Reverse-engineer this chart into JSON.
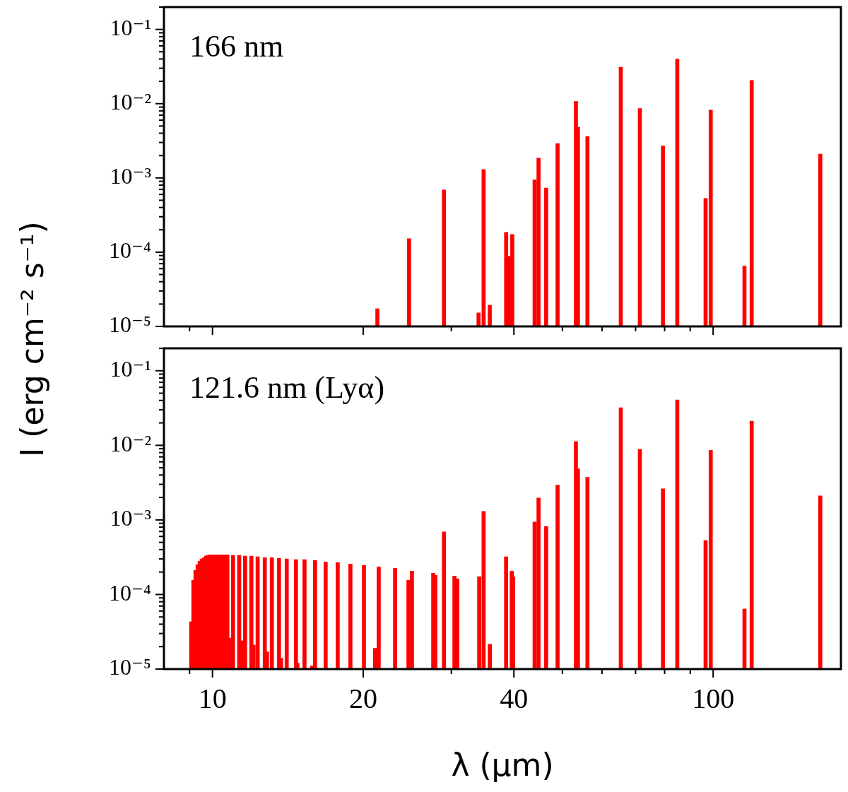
{
  "chart_data": [
    {
      "type": "bar",
      "ylabel": "I (erg cm⁻² s⁻¹)",
      "annotations": [
        "166 nm"
      ],
      "color": "#ff0000",
      "log": "xy",
      "tick_labels": "y",
      "x": [
        21.35,
        24.7,
        29.0,
        34.0,
        34.8,
        35.8,
        38.6,
        39.2,
        39.7,
        44.0,
        44.8,
        46.4,
        48.9,
        53.2,
        53.7,
        56.1,
        65.4,
        71.4,
        79.4,
        84.8,
        96.6,
        98.9,
        115.5,
        119.4,
        163.7
      ],
      "values": [
        1.73e-05,
        0.000152,
        0.00069,
        1.52e-05,
        0.0013,
        1.93e-05,
        0.000185,
        8.8e-05,
        0.000173,
        0.00094,
        0.00185,
        0.00073,
        0.0029,
        0.0107,
        0.00485,
        0.0036,
        0.031,
        0.0086,
        0.0027,
        0.04,
        0.00053,
        0.0082,
        6.5e-05,
        0.0206,
        0.0021
      ],
      "xlim": [
        8,
        180
      ],
      "xticks": [
        {
          "value": 9,
          "label": null
        },
        10,
        20,
        {
          "value": 30,
          "label": null
        },
        40,
        {
          "value": 50,
          "label": null
        },
        {
          "value": 60,
          "label": null
        },
        {
          "value": 70,
          "label": null
        },
        {
          "value": 80,
          "label": null
        },
        {
          "value": 90,
          "label": null
        },
        100
      ],
      "ylim": [
        1e-05,
        0.2
      ],
      "yticks": [
        {
          "value": 1e-05,
          "label": "10⁻⁵"
        },
        {
          "value": 2e-05,
          "label": null
        },
        {
          "value": 3e-05,
          "label": null
        },
        {
          "value": 4e-05,
          "label": null
        },
        {
          "value": 5e-05,
          "label": null
        },
        {
          "value": 6e-05,
          "label": null
        },
        {
          "value": 7e-05,
          "label": null
        },
        {
          "value": 8e-05,
          "label": null
        },
        {
          "value": 9e-05,
          "label": null
        },
        {
          "value": 0.0001,
          "label": "10⁻⁴"
        },
        {
          "value": 0.0002,
          "label": null
        },
        {
          "value": 0.0003,
          "label": null
        },
        {
          "value": 0.0004,
          "label": null
        },
        {
          "value": 0.0005,
          "label": null
        },
        {
          "value": 0.0006,
          "label": null
        },
        {
          "value": 0.0007,
          "label": null
        },
        {
          "value": 0.0008,
          "label": null
        },
        {
          "value": 0.0009,
          "label": null
        },
        {
          "value": 0.001,
          "label": "10⁻³"
        },
        {
          "value": 0.002,
          "label": null
        },
        {
          "value": 0.003,
          "label": null
        },
        {
          "value": 0.004,
          "label": null
        },
        {
          "value": 0.005,
          "label": null
        },
        {
          "value": 0.006,
          "label": null
        },
        {
          "value": 0.007,
          "label": null
        },
        {
          "value": 0.008,
          "label": null
        },
        {
          "value": 0.009,
          "label": null
        },
        {
          "value": 0.01,
          "label": "10⁻²"
        },
        {
          "value": 0.02,
          "label": null
        },
        {
          "value": 0.03,
          "label": null
        },
        {
          "value": 0.04,
          "label": null
        },
        {
          "value": 0.05,
          "label": null
        },
        {
          "value": 0.06,
          "label": null
        },
        {
          "value": 0.07,
          "label": null
        },
        {
          "value": 0.08,
          "label": null
        },
        {
          "value": 0.09,
          "label": null
        },
        {
          "value": 0.1,
          "label": "10⁻¹"
        },
        {
          "value": 0.2,
          "label": null
        }
      ]
    },
    {
      "type": "bar",
      "xlabel": "λ (μm)",
      "annotations": [
        "121.6 nm (Lyα)"
      ],
      "color": "#ff0000",
      "log": "xy",
      "x": [
        9.07,
        9.16,
        9.25,
        9.34,
        9.43,
        9.52,
        9.62,
        9.71,
        9.81,
        9.9,
        10.0,
        10.1,
        10.2,
        10.3,
        10.4,
        10.5,
        10.6,
        10.71,
        10.81,
        10.99,
        11.31,
        11.43,
        11.62,
        11.96,
        12.08,
        12.31,
        12.72,
        12.85,
        13.14,
        13.58,
        13.71,
        14.07,
        14.68,
        14.78,
        15.27,
        15.82,
        16.03,
        16.83,
        17.79,
        18.86,
        20.07,
        21.13,
        21.48,
        23.16,
        24.63,
        25.03,
        27.6,
        27.87,
        29.0,
        30.43,
        30.83,
        34.1,
        34.8,
        35.81,
        38.59,
        39.61,
        39.87,
        44.0,
        44.8,
        46.4,
        48.9,
        53.2,
        53.7,
        56.1,
        65.4,
        71.4,
        79.4,
        84.8,
        96.6,
        98.9,
        115.5,
        119.4,
        163.7
      ],
      "values": [
        4.3e-05,
        0.000155,
        0.00021,
        0.00025,
        0.00028,
        0.0003,
        0.00031,
        0.00033,
        0.000335,
        0.00034,
        0.00034,
        0.00034,
        0.00034,
        0.00034,
        0.00034,
        0.00034,
        0.00034,
        0.00034,
        2.6e-05,
        0.000335,
        0.000335,
        2.4e-05,
        0.000327,
        0.000327,
        2.1e-05,
        0.00032,
        0.000312,
        1.7e-05,
        0.000312,
        0.000305,
        1.4e-05,
        0.0003,
        0.000293,
        1.2e-05,
        0.000293,
        1.1e-05,
        0.000286,
        0.000274,
        0.000268,
        0.000256,
        0.000245,
        1.9e-05,
        0.000235,
        0.000225,
        0.000155,
        0.000206,
        0.000193,
        0.000181,
        0.00069,
        0.000177,
        0.000162,
        0.000173,
        0.0013,
        2.15e-05,
        0.00032,
        0.000206,
        0.000173,
        0.00094,
        0.00197,
        0.00082,
        0.00293,
        0.0112,
        0.00485,
        0.00373,
        0.032,
        0.0088,
        0.00262,
        0.0407,
        0.00053,
        0.0086,
        6.4e-05,
        0.0211,
        0.0021
      ],
      "xlim": [
        8,
        180
      ],
      "xticks": [
        {
          "value": 9,
          "label": null
        },
        {
          "value": 10,
          "label": "10"
        },
        {
          "value": 20,
          "label": "20"
        },
        {
          "value": 30,
          "label": null
        },
        {
          "value": 40,
          "label": "40"
        },
        {
          "value": 50,
          "label": null
        },
        {
          "value": 60,
          "label": null
        },
        {
          "value": 70,
          "label": null
        },
        {
          "value": 80,
          "label": null
        },
        {
          "value": 90,
          "label": null
        },
        {
          "value": 100,
          "label": "100"
        }
      ],
      "ylim": [
        1e-05,
        0.2
      ],
      "yticks": [
        {
          "value": 1e-05,
          "label": "10⁻⁵"
        },
        {
          "value": 2e-05,
          "label": null
        },
        {
          "value": 3e-05,
          "label": null
        },
        {
          "value": 4e-05,
          "label": null
        },
        {
          "value": 5e-05,
          "label": null
        },
        {
          "value": 6e-05,
          "label": null
        },
        {
          "value": 7e-05,
          "label": null
        },
        {
          "value": 8e-05,
          "label": null
        },
        {
          "value": 9e-05,
          "label": null
        },
        {
          "value": 0.0001,
          "label": "10⁻⁴"
        },
        {
          "value": 0.0002,
          "label": null
        },
        {
          "value": 0.0003,
          "label": null
        },
        {
          "value": 0.0004,
          "label": null
        },
        {
          "value": 0.0005,
          "label": null
        },
        {
          "value": 0.0006,
          "label": null
        },
        {
          "value": 0.0007,
          "label": null
        },
        {
          "value": 0.0008,
          "label": null
        },
        {
          "value": 0.0009,
          "label": null
        },
        {
          "value": 0.001,
          "label": "10⁻³"
        },
        {
          "value": 0.002,
          "label": null
        },
        {
          "value": 0.003,
          "label": null
        },
        {
          "value": 0.004,
          "label": null
        },
        {
          "value": 0.005,
          "label": null
        },
        {
          "value": 0.006,
          "label": null
        },
        {
          "value": 0.007,
          "label": null
        },
        {
          "value": 0.008,
          "label": null
        },
        {
          "value": 0.009,
          "label": null
        },
        {
          "value": 0.01,
          "label": "10⁻²"
        },
        {
          "value": 0.02,
          "label": null
        },
        {
          "value": 0.03,
          "label": null
        },
        {
          "value": 0.04,
          "label": null
        },
        {
          "value": 0.05,
          "label": null
        },
        {
          "value": 0.06,
          "label": null
        },
        {
          "value": 0.07,
          "label": null
        },
        {
          "value": 0.08,
          "label": null
        },
        {
          "value": 0.09,
          "label": null
        },
        {
          "value": 0.1,
          "label": "10⁻¹"
        },
        {
          "value": 0.2,
          "label": null
        }
      ]
    }
  ]
}
